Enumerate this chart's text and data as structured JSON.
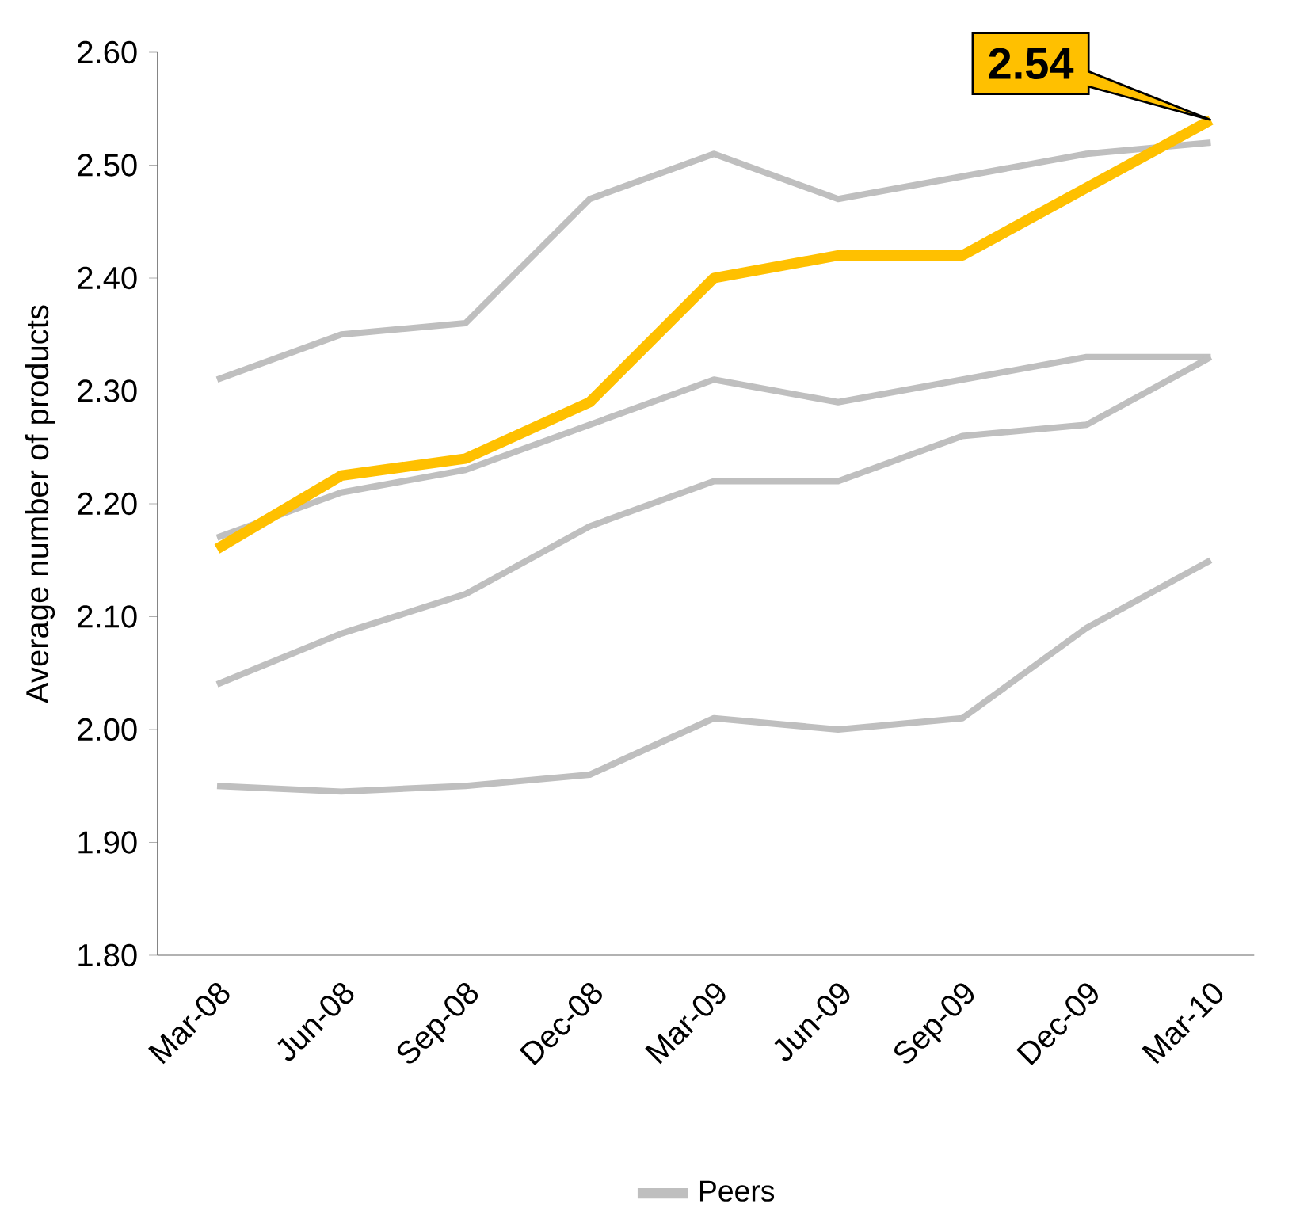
{
  "chart_data": {
    "type": "line",
    "categories": [
      "Mar-08",
      "Jun-08",
      "Sep-08",
      "Dec-08",
      "Mar-09",
      "Jun-09",
      "Sep-09",
      "Dec-09",
      "Mar-10"
    ],
    "ylabel": "Average number of products",
    "series": [
      {
        "color": "#ffc000",
        "values": [
          2.16,
          2.225,
          2.24,
          2.29,
          2.4,
          2.42,
          2.42,
          2.48,
          2.54
        ]
      },
      {
        "name": "Peers",
        "color": "#bfbfbf",
        "values": [
          2.31,
          2.35,
          2.36,
          2.47,
          2.51,
          2.47,
          2.49,
          2.51,
          2.52
        ]
      },
      {
        "color": "#bfbfbf",
        "values": [
          2.17,
          2.21,
          2.23,
          2.27,
          2.31,
          2.29,
          2.31,
          2.33,
          2.33
        ]
      },
      {
        "color": "#bfbfbf",
        "values": [
          2.04,
          2.085,
          2.12,
          2.18,
          2.22,
          2.22,
          2.26,
          2.27,
          2.33
        ]
      },
      {
        "color": "#bfbfbf",
        "values": [
          1.95,
          1.945,
          1.95,
          1.96,
          2.01,
          2.0,
          2.01,
          2.09,
          2.15
        ]
      }
    ],
    "ylim": [
      1.8,
      2.6
    ],
    "yticks": [
      {
        "value": 1.8,
        "label": "1.80"
      },
      {
        "value": 1.9,
        "label": "1.90"
      },
      {
        "value": 2.0,
        "label": "2.00"
      },
      {
        "value": 2.1,
        "label": "2.10"
      },
      {
        "value": 2.2,
        "label": "2.20"
      },
      {
        "value": 2.3,
        "label": "2.30"
      },
      {
        "value": 2.4,
        "label": "2.40"
      },
      {
        "value": 2.5,
        "label": "2.50"
      },
      {
        "value": 2.6,
        "label": "2.60"
      }
    ],
    "legend": "bottom",
    "annotations": [
      "2.54"
    ]
  }
}
